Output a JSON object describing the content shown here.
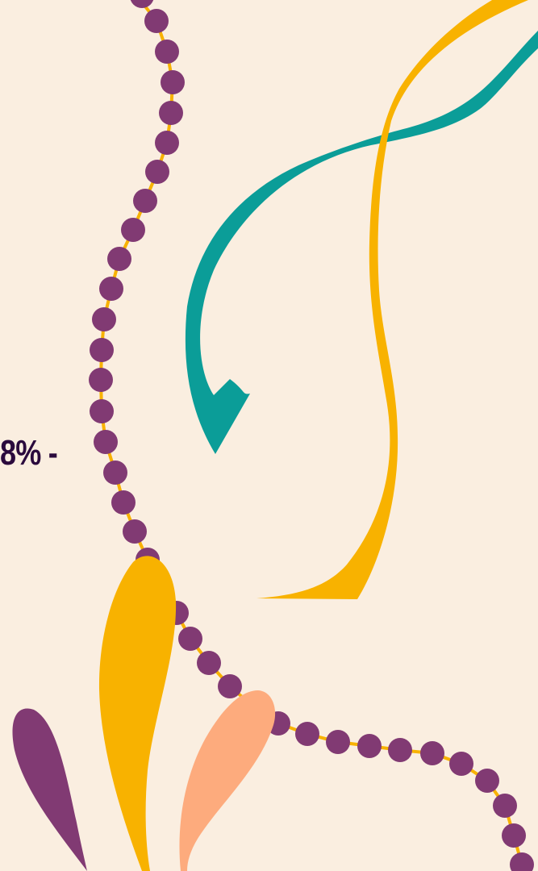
{
  "stat": {
    "text": "8% -"
  },
  "colors": {
    "background": "#faeee0",
    "purple": "#813a73",
    "yellow": "#f8b200",
    "teal": "#0b9d98",
    "peach": "#fdab7d",
    "text": "#2b0a3d"
  },
  "decorations": [
    "beaded-string",
    "teal-ribbon",
    "yellow-ribbon",
    "yellow-leaf",
    "peach-leaf",
    "purple-leaf"
  ]
}
